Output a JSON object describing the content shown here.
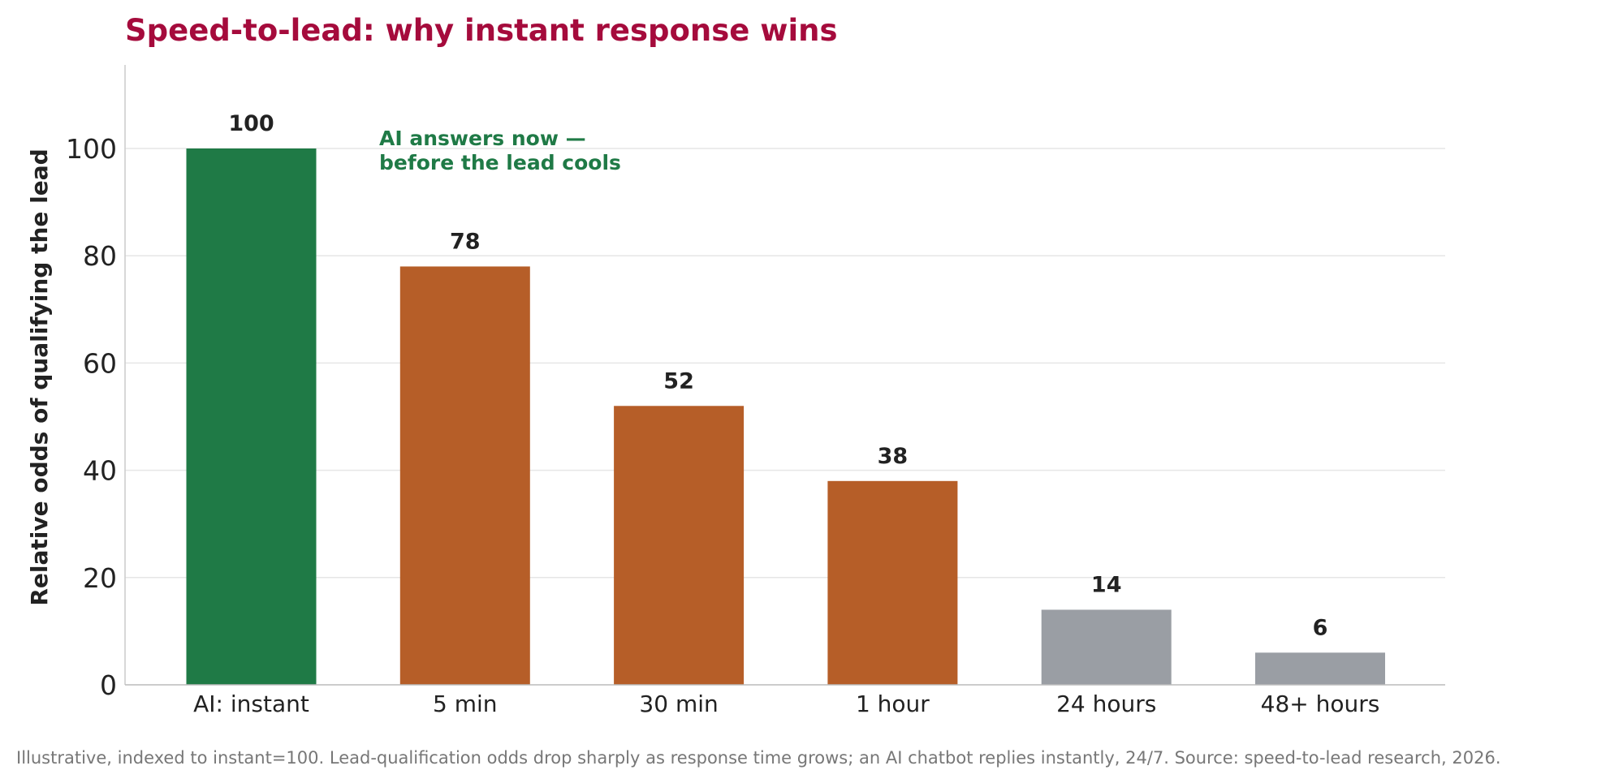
{
  "chart_data": {
    "type": "bar",
    "title": "Speed-to-lead: why instant response wins",
    "xlabel": "",
    "ylabel": "Relative odds of qualifying the lead",
    "categories": [
      "AI: instant",
      "5 min",
      "30 min",
      "1 hour",
      "24 hours",
      "48+ hours"
    ],
    "values": [
      100,
      78,
      52,
      38,
      14,
      6
    ],
    "value_labels": [
      "100",
      "78",
      "52",
      "38",
      "14",
      "6"
    ],
    "bar_colors": [
      "#1f7a46",
      "#b65e28",
      "#b65e28",
      "#b65e28",
      "#9a9ea4",
      "#9a9ea4"
    ],
    "ylim": [
      0,
      115
    ],
    "yticks": [
      0,
      20,
      40,
      60,
      80,
      100
    ],
    "grid": "horizontal",
    "annotation": {
      "lines": [
        "AI answers now —",
        "before the lead cools"
      ],
      "color": "#1f7a46"
    },
    "footnote": "Illustrative, indexed to instant=100. Lead-qualification odds drop sharply as response time grows; an AI chatbot replies instantly, 24/7. Source: speed-to-lead research, 2026.",
    "title_color": "#a50b3c"
  }
}
